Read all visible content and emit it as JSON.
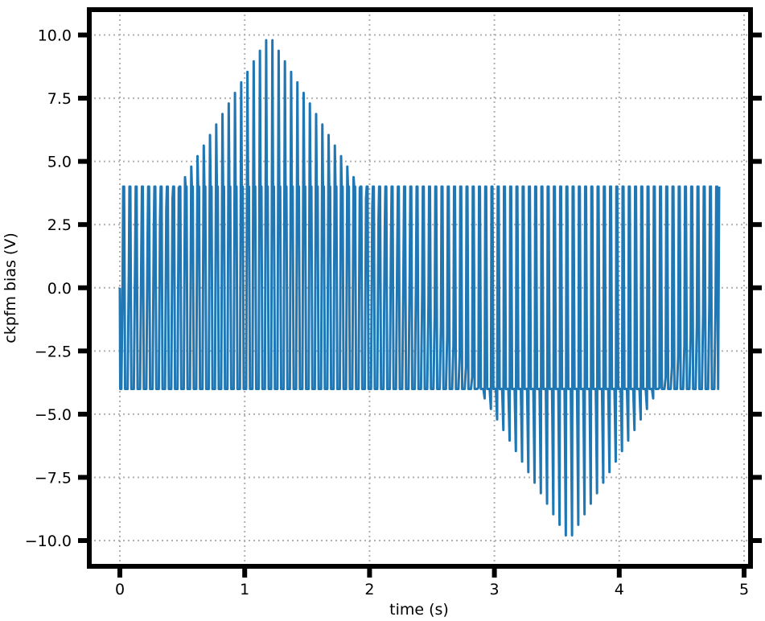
{
  "chart_data": {
    "type": "line",
    "title": "",
    "xlabel": "time (s)",
    "ylabel": "ckpfm bias (V)",
    "xlim": [
      -0.24,
      5.04
    ],
    "ylim": [
      -11.1,
      11.1
    ],
    "x_ticks": [
      0,
      1,
      2,
      3,
      4,
      5
    ],
    "x_tick_labels": [
      "0",
      "1",
      "2",
      "3",
      "4",
      "5"
    ],
    "y_ticks": [
      10.0,
      7.5,
      5.0,
      2.5,
      0.0,
      -2.5,
      -5.0,
      -7.5,
      -10.0
    ],
    "y_tick_labels": [
      "10.0",
      "7.5",
      "5.0",
      "2.5",
      "0.0",
      "−2.5",
      "−5.0",
      "−7.5",
      "−10.0"
    ],
    "grid": true,
    "line_color": "#1f77b4",
    "waveform": {
      "description_of_signal": "alternating read/write pulse train",
      "start_time": 0,
      "end_time": 4.8,
      "period": 0.05,
      "read_high": 4.0,
      "read_low": -4.0,
      "write_peak_max": 10.0,
      "write_peak_min": -10.0,
      "write_peak_max_time": 1.2,
      "write_peak_min_time": 3.6
    },
    "series": [
      {
        "values_note": "",
        "x": [
          0,
          1.2,
          2.4,
          3.6,
          4.8
        ],
        "write_envelope": [
          0,
          10.0,
          0,
          -10.0,
          0
        ]
      }
    ]
  }
}
